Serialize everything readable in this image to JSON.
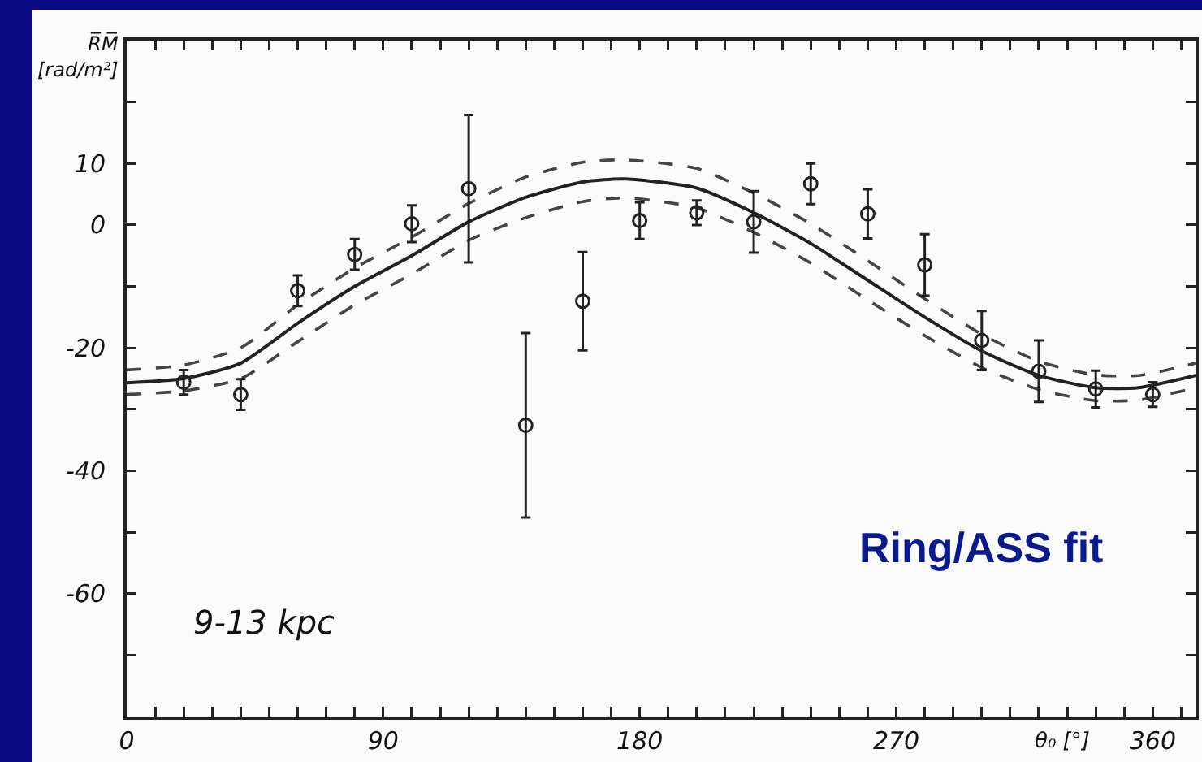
{
  "chart_data": {
    "type": "scatter",
    "ylabel": "R̅M̅ [rad/m²]",
    "xlabel": "θ₀ [°]",
    "xlim": [
      0,
      375
    ],
    "ylim": [
      -80,
      30
    ],
    "xticks": [
      0,
      {
        "value": 10,
        "label": null
      },
      {
        "value": 20,
        "label": null
      },
      {
        "value": 30,
        "label": null
      },
      {
        "value": 40,
        "label": null
      },
      {
        "value": 50,
        "label": null
      },
      {
        "value": 60,
        "label": null
      },
      {
        "value": 70,
        "label": null
      },
      {
        "value": 80,
        "label": null
      },
      90,
      {
        "value": 100,
        "label": null
      },
      {
        "value": 110,
        "label": null
      },
      {
        "value": 120,
        "label": null
      },
      {
        "value": 130,
        "label": null
      },
      {
        "value": 140,
        "label": null
      },
      {
        "value": 150,
        "label": null
      },
      {
        "value": 160,
        "label": null
      },
      {
        "value": 170,
        "label": null
      },
      180,
      {
        "value": 190,
        "label": null
      },
      {
        "value": 200,
        "label": null
      },
      {
        "value": 210,
        "label": null
      },
      {
        "value": 220,
        "label": null
      },
      {
        "value": 230,
        "label": null
      },
      {
        "value": 240,
        "label": null
      },
      {
        "value": 250,
        "label": null
      },
      {
        "value": 260,
        "label": null
      },
      270,
      {
        "value": 280,
        "label": null
      },
      {
        "value": 290,
        "label": null
      },
      {
        "value": 300,
        "label": null
      },
      {
        "value": 310,
        "label": null
      },
      {
        "value": 320,
        "label": null
      },
      {
        "value": 330,
        "label": null
      },
      {
        "value": 340,
        "label": null
      },
      {
        "value": 350,
        "label": null
      },
      360,
      {
        "value": 370,
        "label": null
      }
    ],
    "yticks": [
      {
        "value": -70,
        "label": null
      },
      -60,
      {
        "value": -50,
        "label": null
      },
      -40,
      {
        "value": -30,
        "label": null
      },
      -20,
      {
        "value": -10,
        "label": null
      },
      0,
      10,
      {
        "value": 20,
        "label": null
      }
    ],
    "grid": false,
    "series": [
      {
        "marker": "circle",
        "color": "#222222",
        "x": [
          20,
          40,
          60,
          80,
          100,
          120,
          140,
          160,
          180,
          200,
          220,
          240,
          260,
          280,
          300,
          320,
          340,
          360
        ],
        "values": [
          -25.6,
          -27.6,
          -10.7,
          -4.8,
          0.2,
          5.9,
          -32.6,
          -12.4,
          0.7,
          2,
          0.5,
          6.7,
          1.8,
          -6.5,
          -18.8,
          -23.8,
          -26.7,
          -27.6
        ],
        "errors": [
          2,
          2.5,
          2.5,
          2.5,
          3,
          12,
          15,
          8,
          3,
          2,
          5,
          3.3,
          4,
          5,
          4.8,
          5,
          3,
          2
        ]
      },
      {
        "type": "line",
        "line_style": "solid",
        "color": "#222222",
        "x": [
          0,
          20,
          40,
          60,
          80,
          100,
          120,
          140,
          160,
          175,
          200,
          220,
          240,
          260,
          280,
          300,
          320,
          340,
          355,
          375
        ],
        "values": [
          -25.7,
          -25,
          -22.5,
          -16,
          -10,
          -5,
          0.5,
          4.5,
          7,
          7.5,
          6,
          2,
          -3,
          -9,
          -15,
          -20.5,
          -24.5,
          -26.5,
          -26.5,
          -24.5
        ]
      },
      {
        "type": "line",
        "line_style": "dashed",
        "color": "#444444",
        "x": [
          0,
          20,
          40,
          60,
          80,
          100,
          120,
          140,
          160,
          175,
          200,
          220,
          240,
          260,
          280,
          300,
          320,
          340,
          355,
          375
        ],
        "values": [
          -23.6,
          -22.8,
          -20,
          -13,
          -7,
          -2,
          3.5,
          7.8,
          10.2,
          10.6,
          9.2,
          5.2,
          0.2,
          -5.8,
          -12,
          -17.8,
          -22.2,
          -24.4,
          -24.5,
          -22.5
        ]
      },
      {
        "type": "line",
        "line_style": "dashed",
        "color": "#444444",
        "x": [
          0,
          20,
          40,
          60,
          80,
          100,
          120,
          140,
          160,
          175,
          200,
          220,
          240,
          260,
          280,
          300,
          320,
          340,
          355,
          375
        ],
        "values": [
          -27.6,
          -27,
          -25,
          -19,
          -13,
          -8,
          -2.5,
          1.2,
          3.8,
          4.4,
          2.8,
          -1.2,
          -6.2,
          -12.2,
          -18,
          -23.2,
          -26.8,
          -28.6,
          -28.5,
          -26.5
        ]
      }
    ],
    "annotations": [
      "9-13 kpc",
      "Ring/ASS fit"
    ]
  }
}
